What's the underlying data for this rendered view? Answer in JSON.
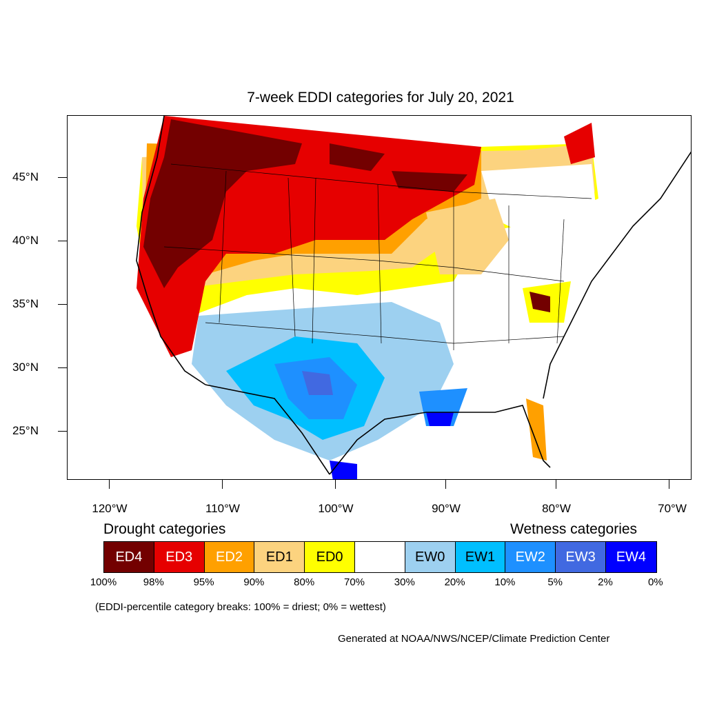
{
  "title": "7-week EDDI categories for July 20, 2021",
  "map": {
    "lat_labels": [
      "45°N",
      "40°N",
      "35°N",
      "30°N",
      "25°N"
    ],
    "lon_labels": [
      "120°W",
      "110°W",
      "100°W",
      "90°W",
      "80°W",
      "70°W"
    ],
    "colors": {
      "ED4": "#730000",
      "ED3": "#e60000",
      "ED2": "#ffaa00",
      "ED1": "#fcd37f",
      "ED0": "#ffff00",
      "neutral": "#ffffff",
      "EW0": "#9dd0f0",
      "EW1": "#00b8ff",
      "EW2": "#1e8cff",
      "EW3": "#4060e0",
      "EW4": "#0000ee"
    }
  },
  "legend": {
    "drought_heading": "Drought categories",
    "wetness_heading": "Wetness categories",
    "categories": [
      {
        "label": "ED4",
        "color": "#730000",
        "text_color": "#ffffff"
      },
      {
        "label": "ED3",
        "color": "#e60000",
        "text_color": "#ffffff"
      },
      {
        "label": "ED2",
        "color": "#ffa000",
        "text_color": "#ffffff"
      },
      {
        "label": "ED1",
        "color": "#fcd37f",
        "text_color": "#000000"
      },
      {
        "label": "ED0",
        "color": "#ffff00",
        "text_color": "#000000"
      },
      {
        "label": "",
        "color": "#ffffff",
        "text_color": "#000000"
      },
      {
        "label": "EW0",
        "color": "#9dd0f0",
        "text_color": "#000000"
      },
      {
        "label": "EW1",
        "color": "#00bfff",
        "text_color": "#000000"
      },
      {
        "label": "EW2",
        "color": "#1e90ff",
        "text_color": "#ffffff"
      },
      {
        "label": "EW3",
        "color": "#4169e1",
        "text_color": "#ffffff"
      },
      {
        "label": "EW4",
        "color": "#0000ff",
        "text_color": "#ffffff"
      }
    ],
    "percent_breaks": [
      "100%",
      "98%",
      "95%",
      "90%",
      "80%",
      "70%",
      "30%",
      "20%",
      "10%",
      "5%",
      "2%",
      "0%"
    ]
  },
  "note": "(EDDI-percentile category breaks: 100% = driest; 0% = wettest)",
  "credit": "Generated at NOAA/NWS/NCEP/Climate Prediction Center"
}
